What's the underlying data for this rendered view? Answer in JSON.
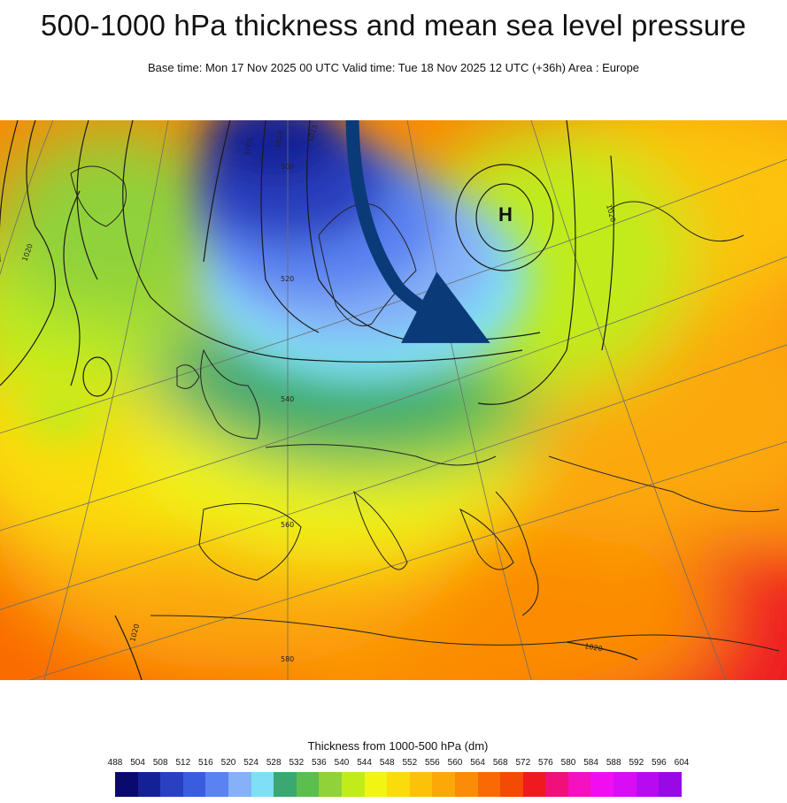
{
  "header": {
    "title": "500-1000 hPa thickness and mean sea level pressure",
    "subtitle": "Base time: Mon 17 Nov 2025 00 UTC Valid time: Tue 18 Nov 2025 12 UTC (+36h) Area : Europe"
  },
  "map": {
    "high_label": "H",
    "isobar_labels": [
      "1005",
      "1010",
      "1015",
      "1020",
      "1020",
      "1020",
      "1020"
    ],
    "thickness_labels": [
      "500",
      "520",
      "540",
      "560",
      "580"
    ],
    "arrow_color": "#0b3a78"
  },
  "legend": {
    "title": "Thickness from 1000-500 hPa (dm)",
    "ticks": [
      "488",
      "504",
      "508",
      "512",
      "516",
      "520",
      "524",
      "528",
      "532",
      "536",
      "540",
      "544",
      "548",
      "552",
      "556",
      "560",
      "564",
      "568",
      "572",
      "576",
      "580",
      "584",
      "588",
      "592",
      "596",
      "604"
    ],
    "colors": [
      "#0a0a6e",
      "#142196",
      "#2940c0",
      "#3a5de0",
      "#5a82f0",
      "#86b0f8",
      "#7fe0f5",
      "#3aa870",
      "#5cbe4e",
      "#8fd23a",
      "#c0ec1a",
      "#f0f514",
      "#fadc0c",
      "#fcc20a",
      "#fca808",
      "#fb8c06",
      "#f96a04",
      "#f34a04",
      "#ef1a20",
      "#f0107a",
      "#f510c0",
      "#f00ef0",
      "#d80cf5",
      "#b80af0",
      "#9a08e6"
    ]
  }
}
